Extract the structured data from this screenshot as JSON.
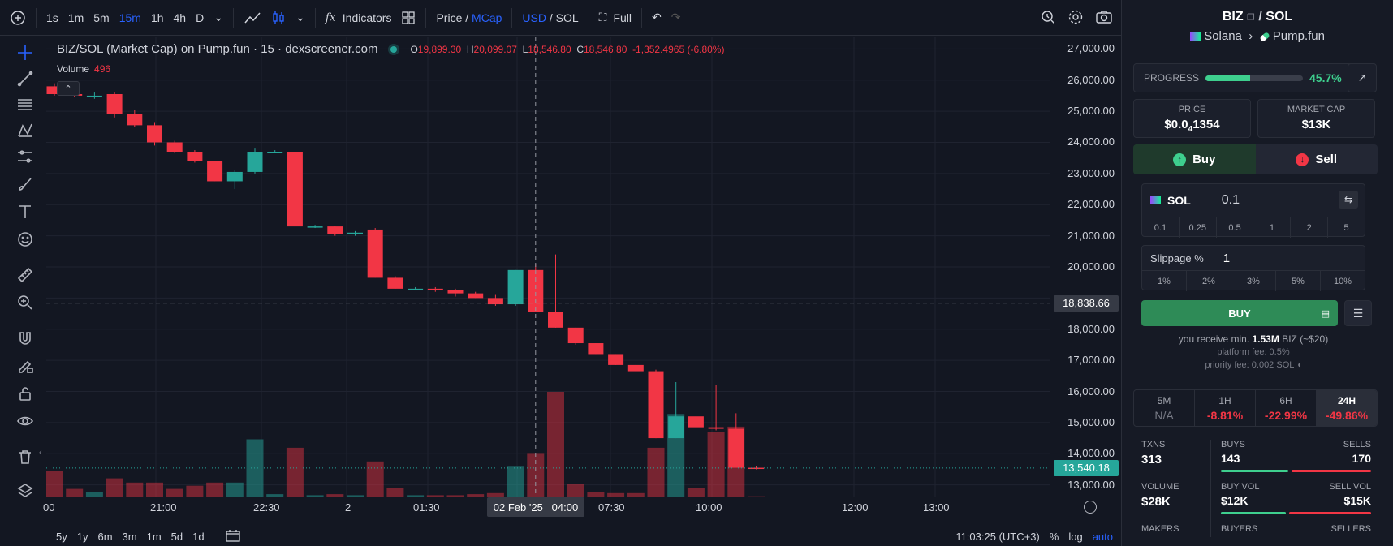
{
  "toolbar": {
    "intervals": [
      "1s",
      "1m",
      "5m",
      "15m",
      "1h",
      "4h",
      "D"
    ],
    "active_interval": "15m",
    "indicators_label": "Indicators",
    "price_label": "Price",
    "mcap_label": "MCap",
    "usd_label": "USD",
    "sol_label": "SOL",
    "full_label": "Full"
  },
  "legend": {
    "title": "BIZ/SOL (Market Cap) on Pump.fun · 15 · dexscreener.com",
    "o_key": "O",
    "o_val": "19,899.30",
    "h_key": "H",
    "h_val": "20,099.07",
    "l_key": "L",
    "l_val": "18,546.80",
    "c_key": "C",
    "c_val": "18,546.80",
    "change": "-1,352.4965 (-6.80%)",
    "volume_label": "Volume",
    "volume_value": "496"
  },
  "price_scale": {
    "labels": [
      "27,000.00",
      "26,000.00",
      "25,000.00",
      "24,000.00",
      "23,000.00",
      "22,000.00",
      "21,000.00",
      "20,000.00",
      "18,838.66",
      "18,000.00",
      "17,000.00",
      "16,000.00",
      "15,000.00",
      "14,000.00",
      "13,540.18",
      "13,000.00"
    ],
    "crosshair": "18,838.66",
    "last": "13,540.18"
  },
  "time_axis": {
    "labels": [
      "00",
      "21:00",
      "22:30",
      "2",
      "01:30",
      "04:00",
      "07:30",
      "10:00",
      "12:00",
      "13:00"
    ],
    "crosshair": "02 Feb '25   04:00"
  },
  "bottombar": {
    "ranges": [
      "5y",
      "1y",
      "6m",
      "3m",
      "1m",
      "5d",
      "1d"
    ],
    "clock": "11:03:25 (UTC+3)",
    "pct": "%",
    "log": "log",
    "auto": "auto"
  },
  "chart_data": {
    "type": "candlestick",
    "ylim": [
      12600,
      27400
    ],
    "up_color": "#26a69a",
    "down_color": "#f23645",
    "candles": [
      {
        "o": 25800,
        "h": 25900,
        "l": 25500,
        "c": 25550,
        "v": 0.25
      },
      {
        "o": 25550,
        "h": 25650,
        "l": 25450,
        "c": 25500,
        "v": 0.08
      },
      {
        "o": 25500,
        "h": 25600,
        "l": 25400,
        "c": 25500,
        "v": 0.05
      },
      {
        "o": 25550,
        "h": 25600,
        "l": 24800,
        "c": 24900,
        "v": 0.18
      },
      {
        "o": 24900,
        "h": 25050,
        "l": 24500,
        "c": 24550,
        "v": 0.14
      },
      {
        "o": 24550,
        "h": 24650,
        "l": 23900,
        "c": 24000,
        "v": 0.14
      },
      {
        "o": 24000,
        "h": 24050,
        "l": 23650,
        "c": 23700,
        "v": 0.08
      },
      {
        "o": 23700,
        "h": 23750,
        "l": 23350,
        "c": 23400,
        "v": 0.11
      },
      {
        "o": 23400,
        "h": 23400,
        "l": 22750,
        "c": 22750,
        "v": 0.14
      },
      {
        "o": 22750,
        "h": 23100,
        "l": 22500,
        "c": 23050,
        "v": 0.14
      },
      {
        "o": 23050,
        "h": 23800,
        "l": 23000,
        "c": 23700,
        "v": 0.55
      },
      {
        "o": 23700,
        "h": 23750,
        "l": 23650,
        "c": 23700,
        "v": 0.03
      },
      {
        "o": 23700,
        "h": 23700,
        "l": 21300,
        "c": 21300,
        "v": 0.47
      },
      {
        "o": 21300,
        "h": 21350,
        "l": 21250,
        "c": 21300,
        "v": 0.02
      },
      {
        "o": 21300,
        "h": 21300,
        "l": 21000,
        "c": 21050,
        "v": 0.03
      },
      {
        "o": 21050,
        "h": 21150,
        "l": 21000,
        "c": 21100,
        "v": 0.02
      },
      {
        "o": 21200,
        "h": 21250,
        "l": 19650,
        "c": 19650,
        "v": 0.34
      },
      {
        "o": 19650,
        "h": 19700,
        "l": 19300,
        "c": 19300,
        "v": 0.09
      },
      {
        "o": 19300,
        "h": 19350,
        "l": 19250,
        "c": 19300,
        "v": 0.02
      },
      {
        "o": 19300,
        "h": 19350,
        "l": 19200,
        "c": 19250,
        "v": 0.02
      },
      {
        "o": 19250,
        "h": 19300,
        "l": 19050,
        "c": 19150,
        "v": 0.02
      },
      {
        "o": 19150,
        "h": 19200,
        "l": 19000,
        "c": 19000,
        "v": 0.03
      },
      {
        "o": 19000,
        "h": 19100,
        "l": 18750,
        "c": 18800,
        "v": 0.04
      },
      {
        "o": 18800,
        "h": 19900,
        "l": 18750,
        "c": 19900,
        "v": 0.29
      },
      {
        "o": 19900,
        "h": 20100,
        "l": 18550,
        "c": 18550,
        "v": 0.42
      },
      {
        "o": 18550,
        "h": 20400,
        "l": 18050,
        "c": 18050,
        "v": 1.0
      },
      {
        "o": 18050,
        "h": 18050,
        "l": 17500,
        "c": 17550,
        "v": 0.13
      },
      {
        "o": 17550,
        "h": 17550,
        "l": 17200,
        "c": 17200,
        "v": 0.05
      },
      {
        "o": 17200,
        "h": 17200,
        "l": 16850,
        "c": 16850,
        "v": 0.04
      },
      {
        "o": 16850,
        "h": 16850,
        "l": 16650,
        "c": 16650,
        "v": 0.04
      },
      {
        "o": 16650,
        "h": 16700,
        "l": 14500,
        "c": 14500,
        "v": 0.47
      },
      {
        "o": 14500,
        "h": 16300,
        "l": 14500,
        "c": 15200,
        "v": 0.79
      },
      {
        "o": 15200,
        "h": 15200,
        "l": 14850,
        "c": 14850,
        "v": 0.09
      },
      {
        "o": 14850,
        "h": 16200,
        "l": 14750,
        "c": 14800,
        "v": 0.62
      },
      {
        "o": 14800,
        "h": 15300,
        "l": 13550,
        "c": 13550,
        "v": 0.67
      },
      {
        "o": 13550,
        "h": 13600,
        "l": 13500,
        "c": 13540,
        "v": 0.01
      }
    ]
  },
  "panel": {
    "base": "BIZ",
    "quote": "SOL",
    "chain": "Solana",
    "dex": "Pump.fun",
    "progress_label": "PROGRESS",
    "progress_value": 0.457,
    "progress_text": "45.7%",
    "price_label": "PRICE",
    "price_main": "$0.0",
    "price_sub": "4",
    "price_tail": "1354",
    "mcap_label": "MARKET CAP",
    "mcap_value": "$13K",
    "buy_tab": "Buy",
    "sell_tab": "Sell",
    "amount_currency": "SOL",
    "amount_value": "0.1",
    "amount_presets": [
      "0.1",
      "0.25",
      "0.5",
      "1",
      "2",
      "5"
    ],
    "slippage_label": "Slippage %",
    "slippage_value": "1",
    "slippage_presets": [
      "1%",
      "2%",
      "3%",
      "5%",
      "10%"
    ],
    "buy_button": "BUY",
    "receive_prefix": "you receive min.",
    "receive_amount": "1.53M",
    "receive_suffix": "BIZ (~$20)",
    "platform_fee": "platform fee: 0.5%",
    "priority_fee": "priority fee: 0.002 SOL",
    "periods": [
      {
        "k": "5M",
        "v": "N/A"
      },
      {
        "k": "1H",
        "v": "-8.81%"
      },
      {
        "k": "6H",
        "v": "-22.99%"
      },
      {
        "k": "24H",
        "v": "-49.86%"
      }
    ],
    "txns_label": "TXNS",
    "txns_value": "313",
    "buys_label": "BUYS",
    "buys_value": "143",
    "sells_label": "SELLS",
    "sells_value": "170",
    "volume_label": "VOLUME",
    "volume_value": "$28K",
    "buyvol_label": "BUY VOL",
    "buyvol_value": "$12K",
    "sellvol_label": "SELL VOL",
    "sellvol_value": "$15K",
    "makers_label": "MAKERS",
    "buyers_label": "BUYERS",
    "sellers_label": "SELLERS"
  }
}
